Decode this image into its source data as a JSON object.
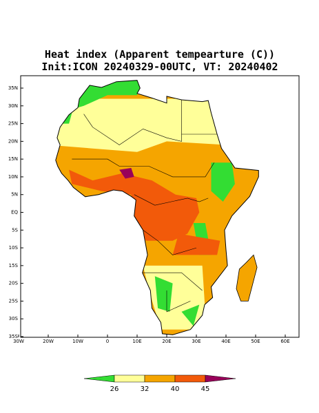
{
  "header": {
    "title": "Heat index (Apparent tempearture (C))",
    "subtitle": "Init:ICON 20240329-00UTC, VT: 20240402"
  },
  "map": {
    "lat_labels": [
      "35N",
      "30N",
      "25N",
      "20N",
      "15N",
      "10N",
      "5N",
      "EQ",
      "5S",
      "10S",
      "15S",
      "20S",
      "25S",
      "30S",
      "35S"
    ],
    "lon_labels": [
      "30W",
      "20W",
      "10W",
      "0",
      "10E",
      "20E",
      "30E",
      "40E",
      "50E",
      "60E"
    ]
  },
  "colorbar": {
    "colors": [
      "#33dd33",
      "#ffff99",
      "#f5a500",
      "#f25a0a",
      "#99005a"
    ],
    "labels": [
      26,
      32,
      40,
      45
    ]
  }
}
